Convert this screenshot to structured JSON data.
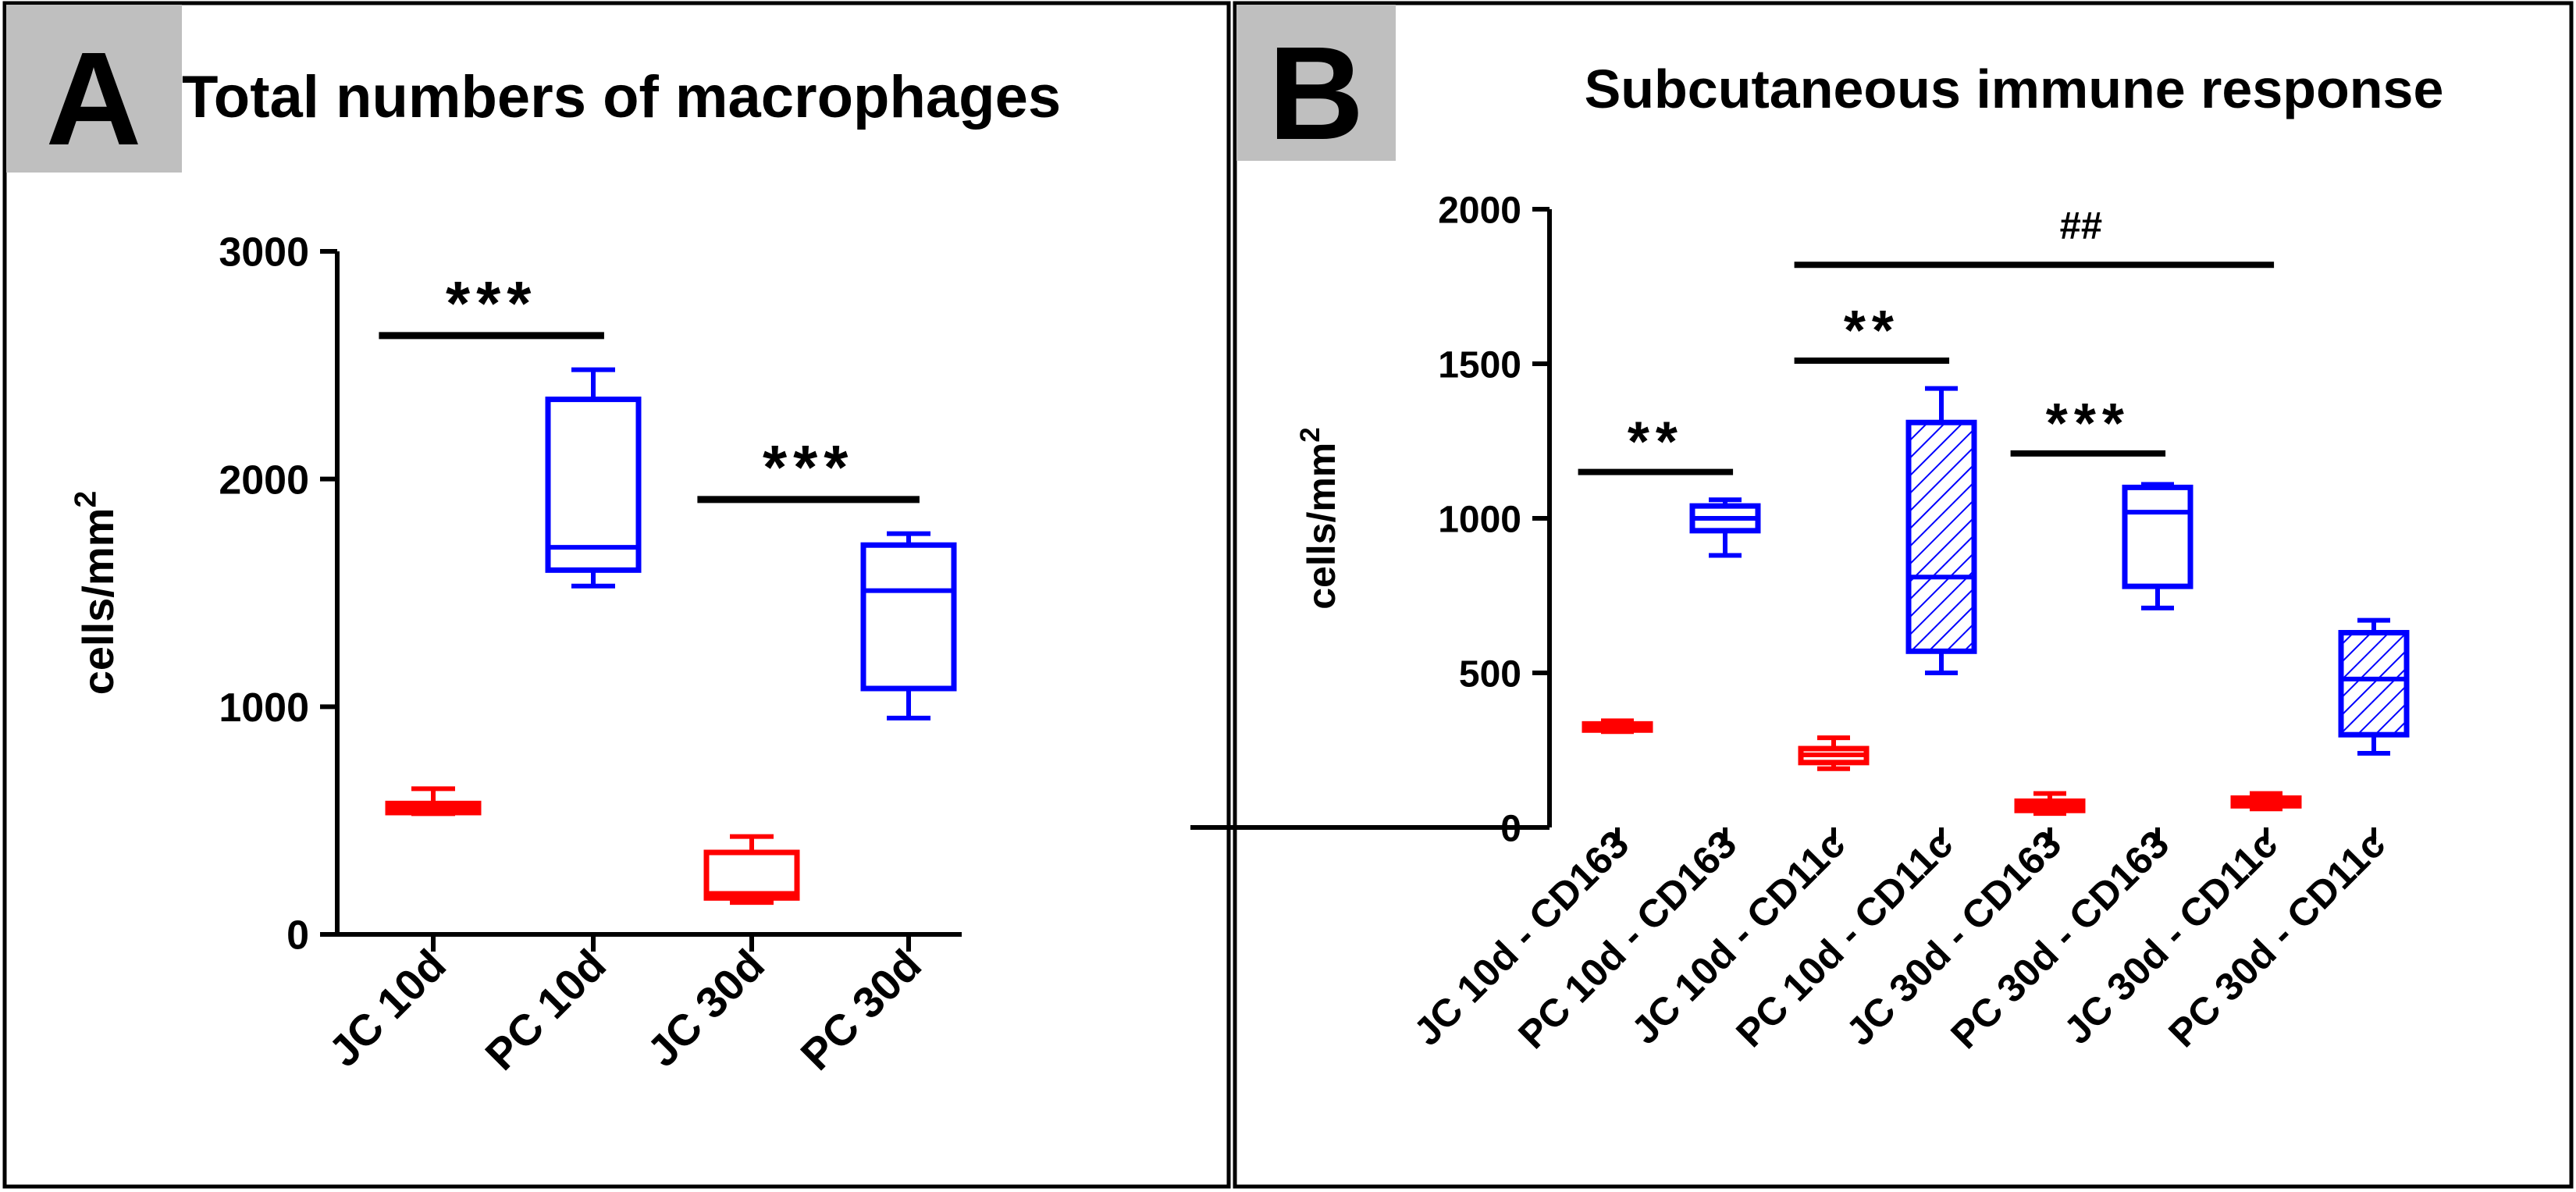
{
  "colors": {
    "jc": "#ff0000",
    "pc": "#0000ff",
    "axis": "#000000",
    "letter_bg": "#bfbfbf",
    "frame": "#000000"
  },
  "chart_data": [
    {
      "panel": "A",
      "type": "boxplot",
      "title": "Total numbers of macrophages",
      "ylabel": "cells/mm",
      "ylabel_sup": "2",
      "ylim": [
        0,
        3000
      ],
      "yticks": [
        0,
        1000,
        2000,
        3000
      ],
      "categories": [
        "JC 10d",
        "PC 10d",
        "JC 30d",
        "PC 30d"
      ],
      "boxes": [
        {
          "group": "JC",
          "color": "jc",
          "hatched": false,
          "min": 530,
          "q1": 535,
          "median": 555,
          "q3": 575,
          "max": 640
        },
        {
          "group": "PC",
          "color": "pc",
          "hatched": false,
          "min": 1530,
          "q1": 1600,
          "median": 1700,
          "q3": 2350,
          "max": 2480
        },
        {
          "group": "JC",
          "color": "jc",
          "hatched": false,
          "min": 140,
          "q1": 160,
          "median": 180,
          "q3": 360,
          "max": 430
        },
        {
          "group": "PC",
          "color": "pc",
          "hatched": false,
          "min": 950,
          "q1": 1080,
          "median": 1510,
          "q3": 1710,
          "max": 1760
        }
      ],
      "annotations": [
        {
          "label": "***",
          "from": 0,
          "to": 1,
          "y": 2630
        },
        {
          "label": "***",
          "from": 2,
          "to": 3,
          "y": 1910
        }
      ]
    },
    {
      "panel": "B",
      "type": "boxplot",
      "title": "Subcutaneous immune response",
      "ylabel": "cells/mm",
      "ylabel_sup": "2",
      "ylim": [
        0,
        2000
      ],
      "yticks": [
        0,
        500,
        1000,
        1500,
        2000
      ],
      "categories": [
        "JC 10d - CD163",
        "PC 10d - CD163",
        "JC 10d - CD11c",
        "PC 10d - CD11c",
        "JC 30d - CD163",
        "PC 30d - CD163",
        "JC 30d - CD11c",
        "PC 30d - CD11c"
      ],
      "boxes": [
        {
          "group": "JC",
          "color": "jc",
          "hatched": false,
          "min": 310,
          "q1": 315,
          "median": 325,
          "q3": 335,
          "max": 345
        },
        {
          "group": "PC",
          "color": "pc",
          "hatched": false,
          "min": 880,
          "q1": 960,
          "median": 1000,
          "q3": 1040,
          "max": 1060
        },
        {
          "group": "JC",
          "color": "jc",
          "hatched": false,
          "min": 190,
          "q1": 210,
          "median": 235,
          "q3": 255,
          "max": 290
        },
        {
          "group": "PC",
          "color": "pc",
          "hatched": true,
          "min": 500,
          "q1": 570,
          "median": 810,
          "q3": 1310,
          "max": 1420
        },
        {
          "group": "JC",
          "color": "jc",
          "hatched": false,
          "min": 45,
          "q1": 55,
          "median": 70,
          "q3": 85,
          "max": 110
        },
        {
          "group": "PC",
          "color": "pc",
          "hatched": false,
          "min": 710,
          "q1": 780,
          "median": 1020,
          "q3": 1100,
          "max": 1110
        },
        {
          "group": "JC",
          "color": "jc",
          "hatched": true,
          "min": 60,
          "q1": 70,
          "median": 85,
          "q3": 95,
          "max": 110
        },
        {
          "group": "PC",
          "color": "pc",
          "hatched": true,
          "min": 240,
          "q1": 300,
          "median": 480,
          "q3": 630,
          "max": 670
        }
      ],
      "annotations": [
        {
          "label": "**",
          "from": 0,
          "to": 1,
          "y": 1150
        },
        {
          "label": "**",
          "from": 2,
          "to": 3,
          "y": 1510
        },
        {
          "label": "***",
          "from": 4,
          "to": 5,
          "y": 1210
        },
        {
          "label": "##",
          "from": 2,
          "to": 6,
          "y": 1820
        }
      ]
    }
  ],
  "panels": [
    {
      "letter": "A",
      "title": "Total numbers of macrophages"
    },
    {
      "letter": "B",
      "title": "Subcutaneous immune response"
    }
  ]
}
